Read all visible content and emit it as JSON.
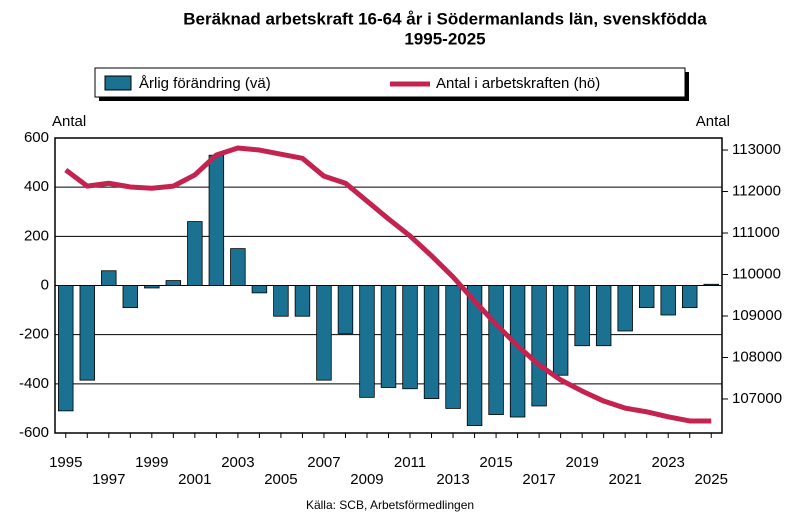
{
  "chart_data": {
    "type": "bar_line",
    "title": "Beräknad arbetskraft 16-64 år i Södermanlands län, svenskfödda",
    "subtitle": "1995-2025",
    "source": "Källa: SCB, Arbetsförmedlingen",
    "ylabel": "Antal",
    "y2label": "Antal",
    "categories": [
      "1995",
      null,
      "1997",
      null,
      "1999",
      null,
      "2001",
      null,
      "2003",
      null,
      "2005",
      null,
      "2007",
      null,
      "2009",
      null,
      "2011",
      null,
      "2013",
      null,
      "2015",
      null,
      "2017",
      null,
      "2019",
      null,
      "2021",
      null,
      "2023",
      null,
      "2025"
    ],
    "series": [
      {
        "name": "Årlig förändring (vä)",
        "type": "bar",
        "color": "#1b7191",
        "values": [
          -510,
          -385,
          60,
          -90,
          -10,
          20,
          260,
          530,
          150,
          -30,
          -125,
          -125,
          -385,
          -195,
          -455,
          -415,
          -420,
          -460,
          -500,
          -570,
          -525,
          -535,
          -490,
          -365,
          -245,
          -245,
          -185,
          -90,
          -120,
          -90,
          5
        ]
      },
      {
        "name": "Antal i arbetskraften (hö)",
        "type": "line",
        "axis": "y2",
        "color": "#c4234f",
        "values": [
          112520,
          112130,
          112200,
          112110,
          112080,
          112130,
          112400,
          112880,
          113050,
          113000,
          112900,
          112800,
          112370,
          112200,
          111770,
          111340,
          110930,
          110450,
          109940,
          109360,
          108800,
          108280,
          107820,
          107460,
          107190,
          106950,
          106780,
          106690,
          106570,
          106470,
          106470
        ]
      }
    ],
    "ylim": [
      -600,
      600
    ],
    "yticks": [
      -600,
      -400,
      -200,
      0,
      200,
      400,
      600
    ],
    "y2lim": [
      106180,
      113290
    ],
    "y2ticks": [
      107000,
      108000,
      109000,
      110000,
      111000,
      112000,
      113000
    ],
    "grid": true
  }
}
